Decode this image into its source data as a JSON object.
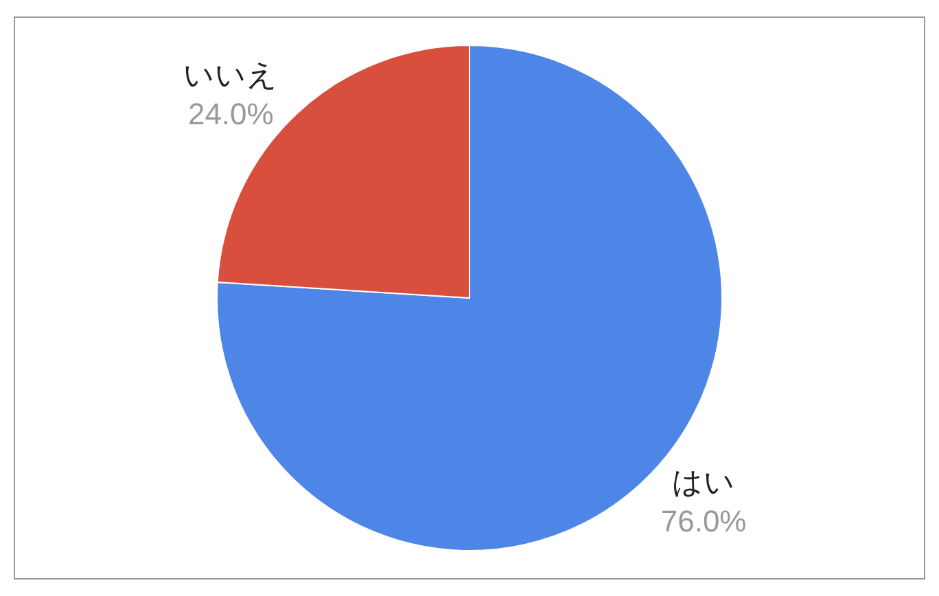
{
  "chart_data": {
    "type": "pie",
    "categories": [
      "はい",
      "いいえ"
    ],
    "values": [
      76,
      24
    ],
    "value_labels": [
      "76.0%",
      "24.0%"
    ],
    "colors": [
      "#4e86e8",
      "#d94f3d"
    ],
    "legend": false
  }
}
